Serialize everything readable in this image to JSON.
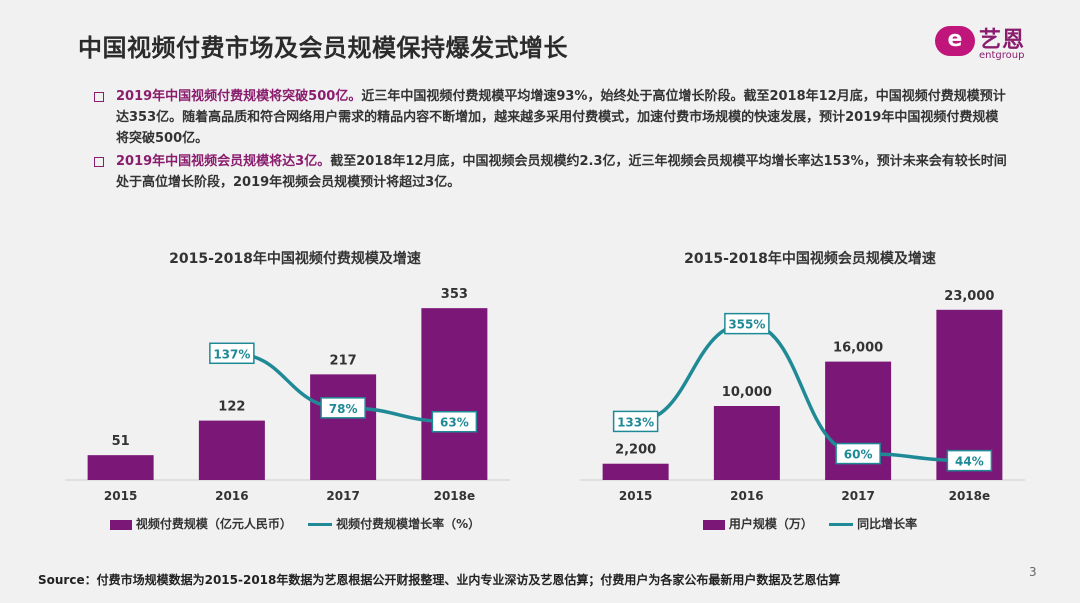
{
  "title": "中国视频付费市场及会员规模保持爆发式增长",
  "logo": {
    "mark": "e",
    "cn": "艺恩",
    "en": "entgroup"
  },
  "bullets": [
    {
      "highlight": "2019年中国视频付费规模将突破500亿。",
      "text": "近三年中国视频付费规模平均增速93%，始终处于高位增长阶段。截至2018年12月底，中国视频付费规模预计达353亿。随着高品质和符合网络用户需求的精品内容不断增加，越来越多采用付费模式，加速付费市场规模的快速发展，预计2019年中国视频付费规模将突破500亿。"
    },
    {
      "highlight": "2019年中国视频会员规模将达3亿。",
      "text": "截至2018年12月底，中国视频会员规模约2.3亿，近三年视频会员规模平均增长率达153%，预计未来会有较长时间处于高位增长阶段，2019年视频会员规模预计将超过3亿。"
    }
  ],
  "colors": {
    "bar": "#7b1877",
    "line": "#1f8a96",
    "accent": "#8a1d6e"
  },
  "chart_data": [
    {
      "type": "bar",
      "title": "2015-2018年中国视频付费规模及增速",
      "categories": [
        "2015",
        "2016",
        "2017",
        "2018e"
      ],
      "series": [
        {
          "name": "视频付费规模（亿元人民币）",
          "kind": "bar",
          "values": [
            51,
            122,
            217,
            353
          ],
          "labels": [
            "51",
            "122",
            "217",
            "353"
          ]
        },
        {
          "name": "视频付费规模增长率（%）",
          "kind": "line",
          "values": [
            null,
            137,
            78,
            63
          ],
          "labels": [
            "",
            "137%",
            "78%",
            "63%"
          ]
        }
      ],
      "ylim": [
        0,
        380
      ],
      "y2lim": [
        0,
        200
      ]
    },
    {
      "type": "bar",
      "title": "2015-2018年中国视频会员规模及增速",
      "categories": [
        "2015",
        "2016",
        "2017",
        "2018e"
      ],
      "series": [
        {
          "name": "用户规模（万）",
          "kind": "bar",
          "values": [
            2200,
            10000,
            16000,
            23000
          ],
          "labels": [
            "2,200",
            "10,000",
            "16,000",
            "23,000"
          ]
        },
        {
          "name": "同比增长率",
          "kind": "line",
          "values": [
            133,
            355,
            60,
            44
          ],
          "labels": [
            "133%",
            "355%",
            "60%",
            "44%"
          ]
        }
      ],
      "ylim": [
        0,
        25000
      ],
      "y2lim": [
        0,
        420
      ]
    }
  ],
  "source": "Source：付费市场规模数据为2015-2018年数据为艺恩根据公开财报整理、业内专业深访及艺恩估算；付费用户为各家公布最新用户数据及艺恩估算",
  "page_number": "3"
}
